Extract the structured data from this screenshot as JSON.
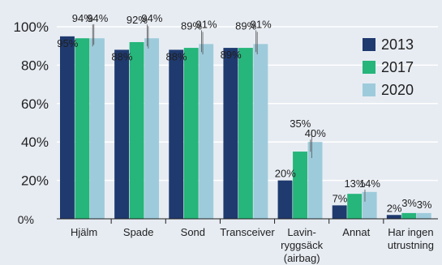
{
  "chart_data": {
    "type": "bar",
    "categories": [
      [
        "Hjälm"
      ],
      [
        "Spade"
      ],
      [
        "Sond"
      ],
      [
        "Transceiver"
      ],
      [
        "Lavin-",
        "ryggsäck",
        "(airbag)"
      ],
      [
        "Annat"
      ],
      [
        "Har ingen",
        "utrustning"
      ]
    ],
    "series": [
      {
        "name": "2013",
        "color": "#1f3a6e",
        "values": [
          95,
          88,
          88,
          89,
          20,
          7,
          2
        ]
      },
      {
        "name": "2017",
        "color": "#26b57a",
        "values": [
          94,
          92,
          89,
          89,
          35,
          13,
          3
        ]
      },
      {
        "name": "2020",
        "color": "#9ecbdb",
        "values": [
          94,
          94,
          91,
          91,
          40,
          14,
          3
        ]
      }
    ],
    "value_labels": [
      [
        "95%",
        "88%",
        "88%",
        "89%",
        "20%",
        "7%",
        "2%"
      ],
      [
        "94%",
        "92%",
        "89%",
        "89%",
        "35%",
        "13%",
        "3%"
      ],
      [
        "94%",
        "94%",
        "91%",
        "91%",
        "40%",
        "14%",
        "3%"
      ]
    ],
    "y_ticks": [
      "0%",
      "20%",
      "40%",
      "60%",
      "80%",
      "100%"
    ],
    "ylim": [
      0,
      100
    ],
    "legend_position": "right",
    "title": "",
    "xlabel": "",
    "ylabel": ""
  }
}
